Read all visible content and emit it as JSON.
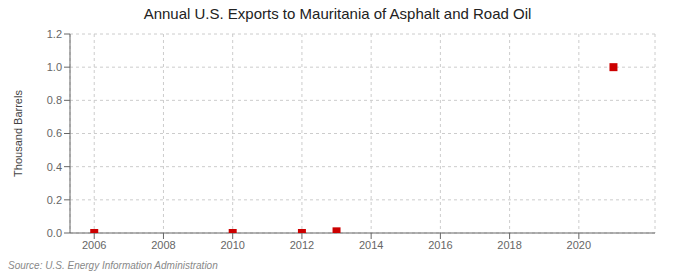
{
  "chart_data": {
    "type": "scatter",
    "title": "Annual U.S. Exports to Mauritania of Asphalt and Road Oil",
    "y_label": "Thousand Barrels",
    "annotations": [
      "Source: U.S. Energy Information Administration"
    ],
    "x": [
      2006,
      2010,
      2012,
      2013,
      2021
    ],
    "values": [
      0.0,
      0.0,
      0.0,
      0.01,
      1.0
    ],
    "color": "#cc0000",
    "marker": "square",
    "xlim": [
      2005.3,
      2022.2
    ],
    "xticks": [
      2006,
      2008,
      2010,
      2012,
      2014,
      2016,
      2018,
      2020
    ],
    "ylim": [
      0.0,
      1.2
    ],
    "yticks": [
      {
        "value": 0,
        "label": "0.0"
      },
      0.2,
      0.4,
      0.6,
      0.8,
      {
        "value": 1,
        "label": "1.0"
      },
      1.2
    ],
    "grid": true
  }
}
